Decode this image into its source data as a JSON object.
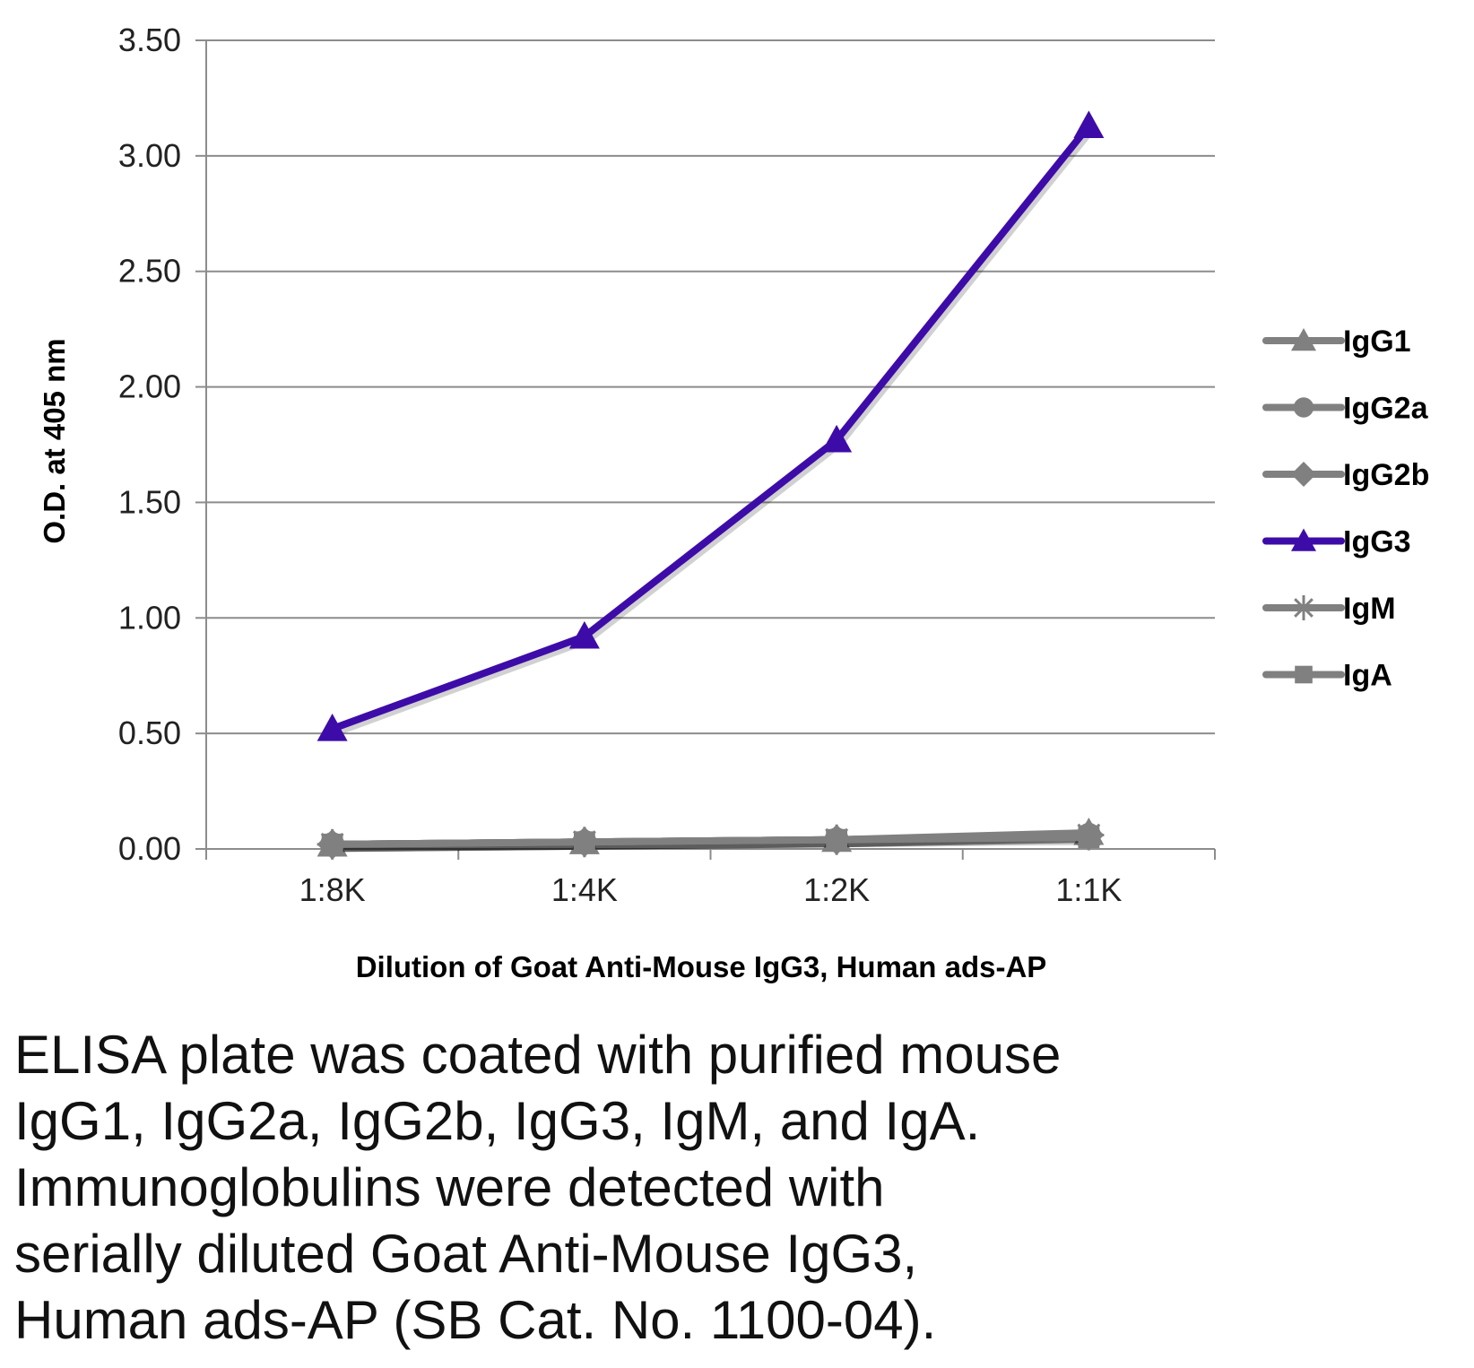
{
  "chart_data": {
    "type": "line",
    "xlabel": "Dilution of Goat Anti-Mouse IgG3, Human ads-AP",
    "ylabel": "O.D. at 405 nm",
    "categories": [
      "1:8K",
      "1:4K",
      "1:2K",
      "1:1K"
    ],
    "ylim": [
      0,
      3.5
    ],
    "yticks": [
      "0.00",
      "0.50",
      "1.00",
      "1.50",
      "2.00",
      "2.50",
      "3.00",
      "3.50"
    ],
    "grid": "horizontal",
    "legend_position": "right",
    "series": [
      {
        "name": "IgG1",
        "values": [
          0.02,
          0.03,
          0.04,
          0.07
        ],
        "color": "#808080",
        "marker": "triangle"
      },
      {
        "name": "IgG2a",
        "values": [
          0.02,
          0.03,
          0.04,
          0.06
        ],
        "color": "#808080",
        "marker": "circle"
      },
      {
        "name": "IgG2b",
        "values": [
          0.02,
          0.03,
          0.04,
          0.06
        ],
        "color": "#808080",
        "marker": "diamond"
      },
      {
        "name": "IgG3",
        "values": [
          0.52,
          0.92,
          1.77,
          3.13
        ],
        "color": "#3d0ca8",
        "marker": "triangle"
      },
      {
        "name": "IgM",
        "values": [
          0.02,
          0.03,
          0.04,
          0.06
        ],
        "color": "#808080",
        "marker": "star"
      },
      {
        "name": "IgA",
        "values": [
          0.02,
          0.03,
          0.04,
          0.05
        ],
        "color": "#808080",
        "marker": "square"
      }
    ]
  },
  "caption_lines": [
    "ELISA plate was coated with purified mouse",
    "IgG1, IgG2a, IgG2b, IgG3, IgM, and IgA.",
    "Immunoglobulins were detected with",
    "serially diluted Goat Anti-Mouse IgG3,",
    "Human ads-AP (SB Cat. No. 1100-04)."
  ]
}
